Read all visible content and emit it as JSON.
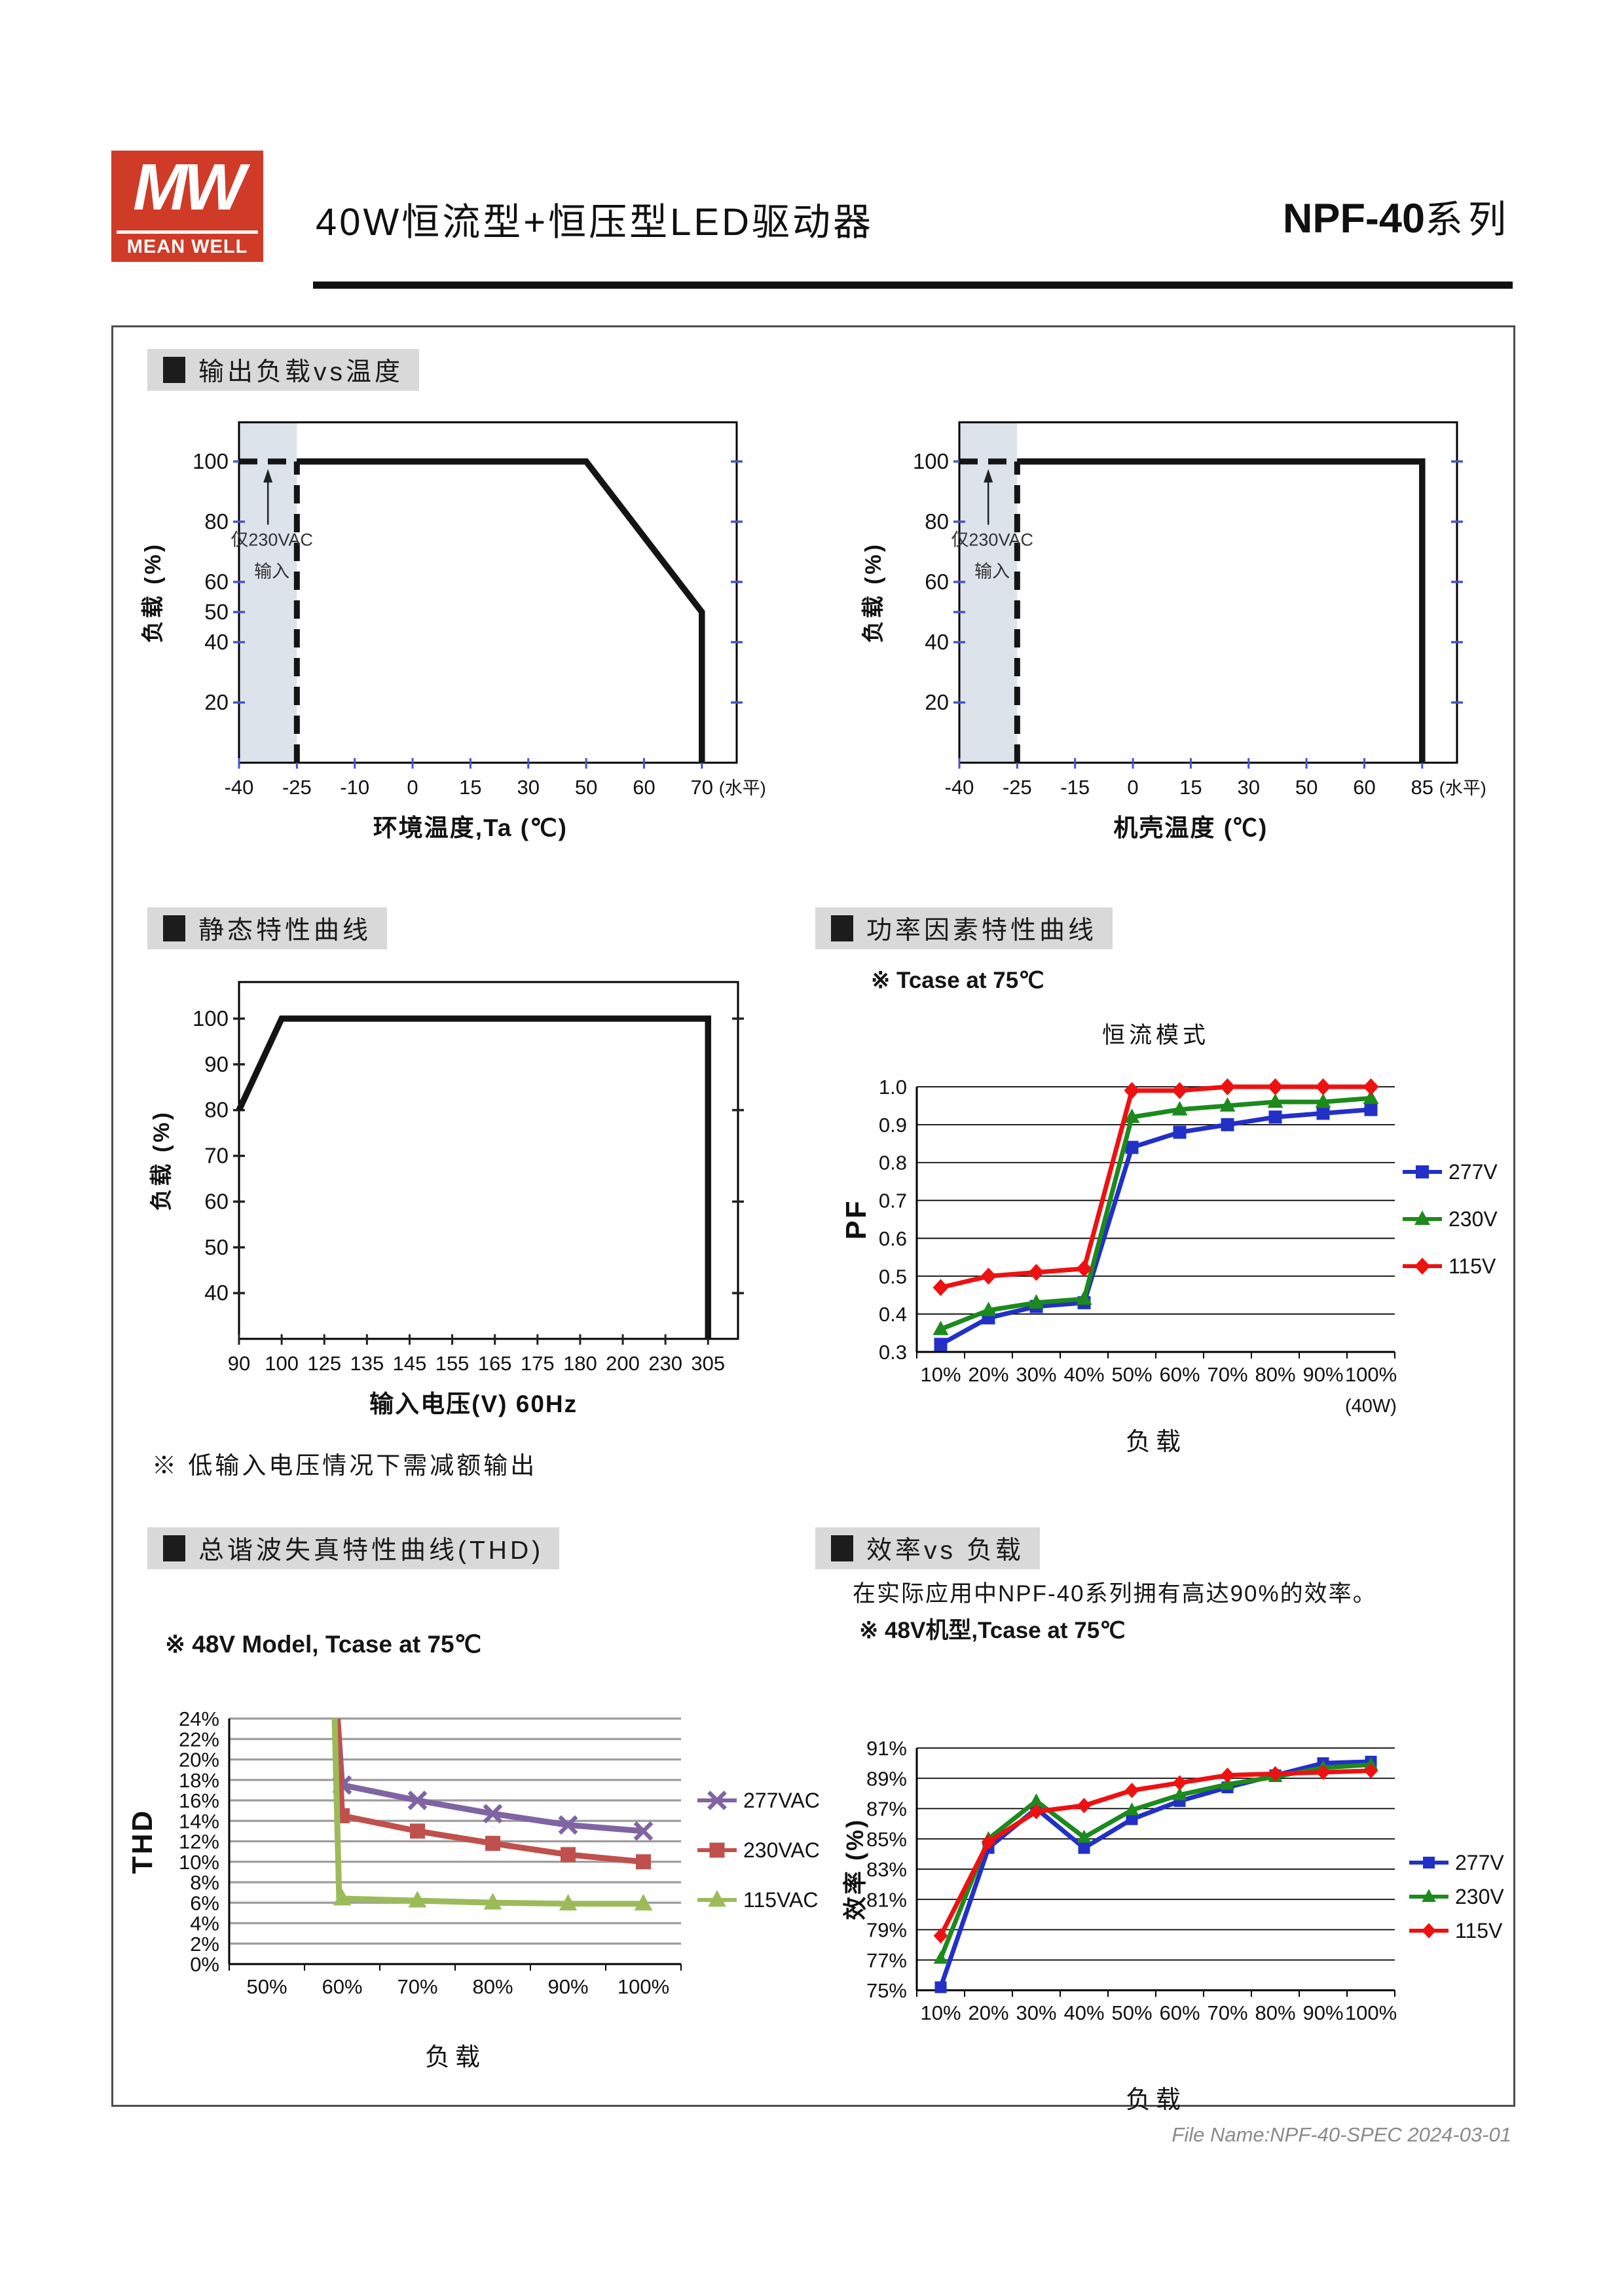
{
  "header": {
    "logo_mw": "MW",
    "logo_brand": "MEAN WELL",
    "title": "40W恒流型+恒压型LED驱动器",
    "series_name": "NPF-40",
    "series_suffix": "系列"
  },
  "sections": {
    "derating": {
      "title": "输出负载vs温度"
    },
    "static": {
      "title": "静态特性曲线",
      "note": "※ 低输入电压情况下需减额输出"
    },
    "pf": {
      "title": "功率因素特性曲线",
      "note": "※ Tcase at 75℃"
    },
    "thd": {
      "title": "总谐波失真特性曲线(THD)",
      "note": "※ 48V Model, Tcase at 75℃"
    },
    "eff": {
      "title": "效率vs 负载",
      "desc": "在实际应用中NPF-40系列拥有高达90%的效率。",
      "note": "※ 48V机型,Tcase at 75℃"
    }
  },
  "footer": {
    "text": "File Name:NPF-40-SPEC  2024-03-01"
  },
  "chart_data": [
    {
      "id": "ambient",
      "type": "line",
      "xlabel": "环境温度,Ta (℃)",
      "ylabel": "负载 (%)",
      "x_ticks": [
        -40,
        -25,
        -10,
        0,
        15,
        30,
        50,
        60,
        70
      ],
      "x_suffix": "(水平)",
      "y_ticks": [
        20,
        40,
        50,
        60,
        80,
        100
      ],
      "minor_y": [],
      "ylim": [
        0,
        113
      ],
      "tick_color": "#4953c8",
      "shade": {
        "from": -40,
        "to": -25,
        "color": "#dce3eb"
      },
      "line": [
        [
          -25,
          100
        ],
        [
          50,
          100
        ],
        [
          70,
          50
        ],
        [
          70,
          0
        ]
      ],
      "dashed": [
        [
          [
            -40,
            100
          ],
          [
            -25,
            100
          ]
        ],
        [
          [
            -25,
            0
          ],
          [
            -25,
            100
          ]
        ]
      ],
      "annotation": {
        "lines": [
          "仅230VAC",
          "输入"
        ],
        "x": -32.5
      }
    },
    {
      "id": "case",
      "type": "line",
      "xlabel": "机壳温度 (℃)",
      "ylabel": "负载 (%)",
      "x_ticks": [
        -40,
        -25,
        -15,
        0,
        15,
        30,
        50,
        60,
        85
      ],
      "x_suffix": "(水平)",
      "y_ticks": [
        20,
        40,
        60,
        80,
        100
      ],
      "minor_y": [
        50
      ],
      "ylim": [
        0,
        113
      ],
      "tick_color": "#4953c8",
      "shade": {
        "from": -40,
        "to": -25,
        "color": "#dce3eb"
      },
      "line": [
        [
          -25,
          100
        ],
        [
          85,
          100
        ],
        [
          85,
          0
        ]
      ],
      "dashed": [
        [
          [
            -40,
            100
          ],
          [
            -25,
            100
          ]
        ],
        [
          [
            -25,
            0
          ],
          [
            -25,
            100
          ]
        ]
      ],
      "annotation": {
        "lines": [
          "仅230VAC",
          "输入"
        ],
        "x": -32.5
      }
    },
    {
      "id": "input",
      "type": "line",
      "xlabel": "输入电压(V) 60Hz",
      "ylabel": "负载 (%)",
      "x_ticks": [
        90,
        100,
        125,
        135,
        145,
        155,
        165,
        175,
        180,
        200,
        230,
        305
      ],
      "x_suffix": "",
      "y_ticks": [
        40,
        50,
        60,
        70,
        80,
        90,
        100
      ],
      "minor_y": [],
      "ylim": [
        30,
        108
      ],
      "tick_color": "#222222",
      "shade": null,
      "line": [
        [
          90,
          80
        ],
        [
          100,
          100
        ],
        [
          305,
          100
        ],
        [
          305,
          30
        ]
      ],
      "dashed": [],
      "annotation": null
    },
    {
      "id": "pf",
      "type": "line",
      "title": "恒流模式",
      "xlabel": "负载",
      "ylabel": "PF",
      "categories": [
        "10%",
        "20%",
        "30%",
        "40%",
        "50%",
        "60%",
        "70%",
        "80%",
        "90%",
        "100%"
      ],
      "x_note": "(40W)",
      "ylim": [
        0.3,
        1.0
      ],
      "ystep": 0.1,
      "yfmt": "dec",
      "grid_color": "#000000",
      "grid_width": 1.8,
      "line_width": 7,
      "series": [
        {
          "name": "277V",
          "color": "#2230c8",
          "marker": "square",
          "values": [
            0.32,
            0.39,
            0.42,
            0.43,
            0.84,
            0.88,
            0.9,
            0.92,
            0.93,
            0.94
          ]
        },
        {
          "name": "230V",
          "color": "#1c8a1c",
          "marker": "triangle",
          "values": [
            0.36,
            0.41,
            0.43,
            0.44,
            0.92,
            0.94,
            0.95,
            0.96,
            0.96,
            0.97
          ]
        },
        {
          "name": "115V",
          "color": "#ee1111",
          "marker": "diamond",
          "values": [
            0.47,
            0.5,
            0.51,
            0.52,
            0.99,
            0.99,
            1.0,
            1.0,
            1.0,
            1.0
          ]
        }
      ]
    },
    {
      "id": "thd",
      "type": "line",
      "xlabel": "负载",
      "ylabel": "THD",
      "categories": [
        "50%",
        "60%",
        "70%",
        "80%",
        "90%",
        "100%"
      ],
      "ylim": [
        0,
        24
      ],
      "ystep": 2,
      "yfmt": "pct",
      "grid_color": "#9d9d9d",
      "grid_width": 3.2,
      "line_width": 9,
      "series": [
        {
          "name": "277VAC",
          "color": "#8064a2",
          "marker": "x",
          "points": [
            [
              59.4,
              24
            ],
            [
              60,
              17.5
            ],
            [
              70,
              16
            ],
            [
              80,
              14.7
            ],
            [
              90,
              13.6
            ],
            [
              100,
              13
            ]
          ]
        },
        {
          "name": "230VAC",
          "color": "#c0504d",
          "marker": "square",
          "points": [
            [
              59.4,
              24
            ],
            [
              60,
              14.5
            ],
            [
              70,
              13
            ],
            [
              80,
              11.8
            ],
            [
              90,
              10.7
            ],
            [
              100,
              10
            ]
          ]
        },
        {
          "name": "115VAC",
          "color": "#9bbb59",
          "marker": "triangle",
          "points": [
            [
              59,
              24
            ],
            [
              59.6,
              6.5
            ],
            [
              60,
              6.4
            ],
            [
              70,
              6.2
            ],
            [
              80,
              6.0
            ],
            [
              90,
              5.9
            ],
            [
              100,
              5.9
            ]
          ]
        }
      ]
    },
    {
      "id": "eff",
      "type": "line",
      "xlabel": "负载",
      "ylabel": "效率 (%)",
      "categories": [
        "10%",
        "20%",
        "30%",
        "40%",
        "50%",
        "60%",
        "70%",
        "80%",
        "90%",
        "100%"
      ],
      "ylim": [
        75,
        91
      ],
      "ystep": 2,
      "yfmt": "pct",
      "grid_color": "#000000",
      "grid_width": 1.8,
      "line_width": 7,
      "series": [
        {
          "name": "277V",
          "color": "#2230c8",
          "marker": "square",
          "values": [
            75.2,
            84.4,
            87.0,
            84.4,
            86.3,
            87.5,
            88.4,
            89.2,
            90.0,
            90.1
          ]
        },
        {
          "name": "230V",
          "color": "#1c8a1c",
          "marker": "triangle",
          "values": [
            77.1,
            85.0,
            87.5,
            85.1,
            86.9,
            87.9,
            88.6,
            89.1,
            89.7,
            89.9
          ]
        },
        {
          "name": "115V",
          "color": "#ee1111",
          "marker": "diamond",
          "values": [
            78.6,
            84.8,
            86.8,
            87.2,
            88.2,
            88.7,
            89.2,
            89.3,
            89.4,
            89.5
          ]
        }
      ]
    }
  ]
}
